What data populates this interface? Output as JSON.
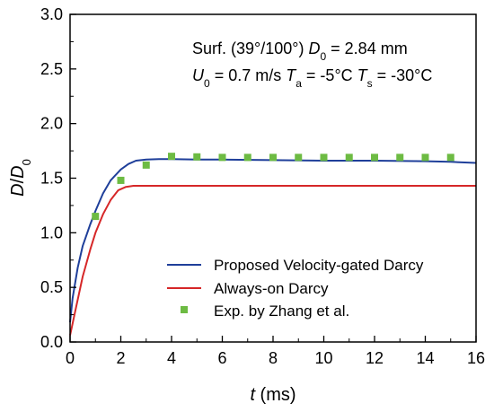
{
  "chart_data": {
    "type": "line",
    "xlabel": {
      "italic": "t",
      "rest": " (ms)"
    },
    "ylabel": {
      "main": "D",
      "slash": "/",
      "base": "D",
      "sub": "0"
    },
    "xlim": [
      0,
      16
    ],
    "ylim": [
      0,
      3.0
    ],
    "xticks": [
      0,
      2,
      4,
      6,
      8,
      10,
      12,
      14,
      16
    ],
    "yticks": [
      "0.0",
      "0.5",
      "1.0",
      "1.5",
      "2.0",
      "2.5",
      "3.0"
    ],
    "grid": false,
    "legend_position": "bottom-right",
    "annotations": {
      "line1": {
        "prefix": "Surf. (39°/100°) ",
        "var": "D",
        "sub": "0",
        "suffix": " = 2.84 mm"
      },
      "line2": {
        "u_var": "U",
        "u_sub": "0",
        "u_val": " = 0.7 m/s ",
        "ta_var": "T",
        "ta_sub": "a",
        "ta_val": " = -5°C ",
        "ts_var": "T",
        "ts_sub": "s",
        "ts_val": " = -30°C"
      }
    },
    "series": [
      {
        "name": "Proposed Velocity-gated Darcy",
        "kind": "line",
        "color": "#1f3f9a",
        "x": [
          0,
          0.1,
          0.3,
          0.5,
          0.8,
          1.0,
          1.3,
          1.6,
          2.0,
          2.3,
          2.6,
          3.0,
          3.5,
          4.0,
          5.0,
          6.0,
          8.0,
          10.0,
          12.0,
          14.0,
          15.0,
          16.0
        ],
        "y": [
          0.18,
          0.4,
          0.68,
          0.88,
          1.08,
          1.2,
          1.36,
          1.48,
          1.58,
          1.63,
          1.66,
          1.67,
          1.675,
          1.675,
          1.67,
          1.67,
          1.665,
          1.66,
          1.66,
          1.655,
          1.65,
          1.64
        ]
      },
      {
        "name": "Always-on Darcy",
        "kind": "line",
        "color": "#d62728",
        "x": [
          0,
          0.2,
          0.5,
          0.8,
          1.0,
          1.3,
          1.6,
          1.9,
          2.2,
          2.5,
          2.8,
          3.0,
          4.0,
          6.0,
          10.0,
          16.0
        ],
        "y": [
          0.06,
          0.28,
          0.6,
          0.85,
          1.0,
          1.17,
          1.3,
          1.39,
          1.42,
          1.43,
          1.43,
          1.43,
          1.43,
          1.43,
          1.43,
          1.43
        ]
      },
      {
        "name": "Exp. by Zhang et al.",
        "kind": "scatter",
        "color": "#6dbb43",
        "x": [
          1,
          2,
          3,
          4,
          5,
          6,
          7,
          8,
          9,
          10,
          11,
          12,
          13,
          14,
          15
        ],
        "y": [
          1.15,
          1.48,
          1.62,
          1.7,
          1.695,
          1.69,
          1.69,
          1.69,
          1.69,
          1.69,
          1.69,
          1.69,
          1.69,
          1.69,
          1.69
        ]
      }
    ]
  }
}
